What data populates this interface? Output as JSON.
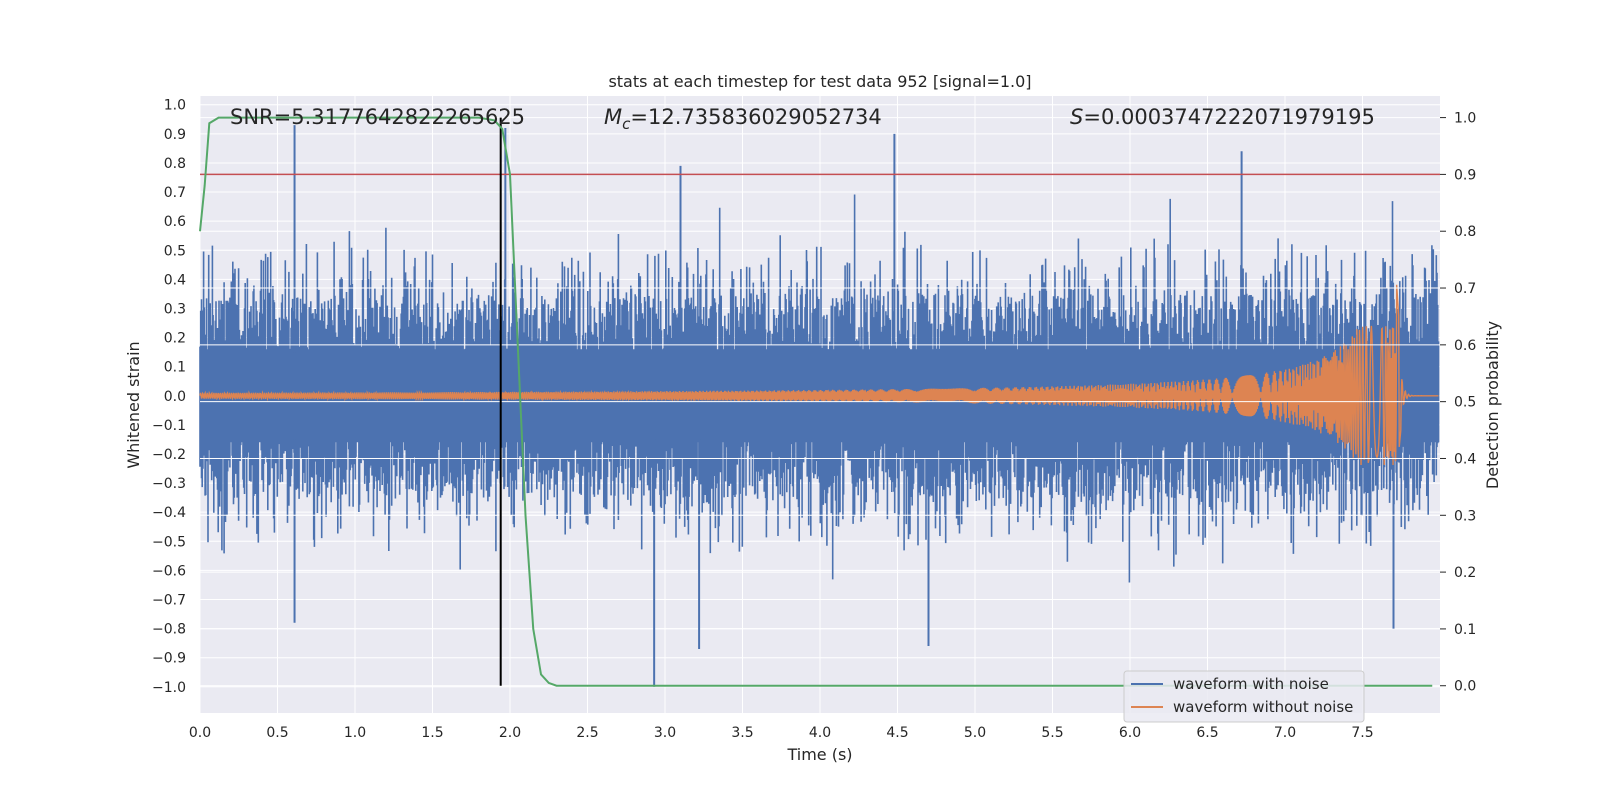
{
  "chart_data": {
    "type": "line",
    "title": "stats at each timestep for test data 952 [signal=1.0]",
    "xlabel": "Time (s)",
    "ylabel": "Whitened strain",
    "y2label": "Detection probability",
    "xlim": [
      0.0,
      8.0
    ],
    "ylim": [
      -1.09,
      1.03
    ],
    "y2lim": [
      -0.048,
      1.038
    ],
    "x_ticks": [
      0.0,
      0.5,
      1.0,
      1.5,
      2.0,
      2.5,
      3.0,
      3.5,
      4.0,
      4.5,
      5.0,
      5.5,
      6.0,
      6.5,
      7.0,
      7.5
    ],
    "x_tick_labels": [
      "0.0",
      "0.5",
      "1.0",
      "1.5",
      "2.0",
      "2.5",
      "3.0",
      "3.5",
      "4.0",
      "4.5",
      "5.0",
      "5.5",
      "6.0",
      "6.5",
      "7.0",
      "7.5"
    ],
    "y_ticks": [
      1.0,
      0.9,
      0.8,
      0.7,
      0.6,
      0.5,
      0.4,
      0.3,
      0.2,
      0.1,
      0.0,
      -0.1,
      -0.2,
      -0.3,
      -0.4,
      -0.5,
      -0.6,
      -0.7,
      -0.8,
      -0.9,
      -1.0
    ],
    "y_tick_labels": [
      "1.0",
      "0.9",
      "0.8",
      "0.7",
      "0.6",
      "0.5",
      "0.4",
      "0.3",
      "0.2",
      "0.1",
      "0.0",
      "−0.1",
      "−0.2",
      "−0.3",
      "−0.4",
      "−0.5",
      "−0.6",
      "−0.7",
      "−0.8",
      "−0.9",
      "−1.0"
    ],
    "y2_ticks": [
      1.0,
      0.9,
      0.8,
      0.7,
      0.6,
      0.5,
      0.4,
      0.3,
      0.2,
      0.1,
      0.0
    ],
    "y2_tick_labels": [
      "1.0",
      "0.9",
      "0.8",
      "0.7",
      "0.6",
      "0.5",
      "0.4",
      "0.3",
      "0.2",
      "0.1",
      "0.0"
    ],
    "annotations": {
      "snr": "SNR=5.3177642822265625",
      "mc_symbol": "M",
      "mc_sub": "c",
      "mc_value": "=12.735836029052734",
      "s_symbol": "S",
      "s_value": "=0.0003747222071979195"
    },
    "legend": {
      "placement": "lower-right",
      "entries": [
        "waveform with noise",
        "waveform without noise"
      ]
    },
    "colors": {
      "background": "#eaeaf2",
      "grid": "#ffffff",
      "noise": "#4c72b0",
      "clean": "#dd8452",
      "probability": "#55a868",
      "threshold": "#c44e52",
      "marker": "#000000"
    },
    "threshold_probability": 0.9,
    "merger_marker_time": 1.94,
    "series": [
      {
        "name": "waveform with noise",
        "axis": "left",
        "description_envelope": {
          "upper_typical": 0.45,
          "lower_typical": -0.45,
          "peaks": [
            {
              "x": 0.61,
              "y": 0.93
            },
            {
              "x": 1.97,
              "y": 0.92
            },
            {
              "x": 3.1,
              "y": 0.79
            },
            {
              "x": 4.48,
              "y": 0.9
            },
            {
              "x": 6.72,
              "y": 0.84
            },
            {
              "x": 2.93,
              "y": -1.0
            },
            {
              "x": 3.22,
              "y": -0.87
            },
            {
              "x": 0.61,
              "y": -0.78
            },
            {
              "x": 4.7,
              "y": -0.86
            },
            {
              "x": 7.7,
              "y": -0.8
            }
          ]
        }
      },
      {
        "name": "waveform without noise",
        "axis": "left",
        "chirp": {
          "start_amplitude": 0.01,
          "merger_time": 7.75,
          "peak_amplitude": 0.24,
          "min_amplitude_at_merger": -0.17
        }
      },
      {
        "name": "detection probability",
        "axis": "right",
        "x": [
          0.0,
          0.03,
          0.06,
          0.12,
          0.2,
          0.5,
          1.0,
          1.5,
          1.8,
          1.9,
          1.95,
          2.0,
          2.05,
          2.1,
          2.15,
          2.2,
          2.25,
          2.3,
          3.0,
          5.0,
          7.0,
          7.95
        ],
        "values": [
          0.8,
          0.88,
          0.99,
          1.0,
          1.0,
          1.0,
          1.0,
          1.0,
          1.0,
          0.995,
          0.98,
          0.9,
          0.6,
          0.3,
          0.1,
          0.02,
          0.005,
          0.0,
          0.0,
          0.0,
          0.0,
          0.0
        ]
      }
    ]
  }
}
